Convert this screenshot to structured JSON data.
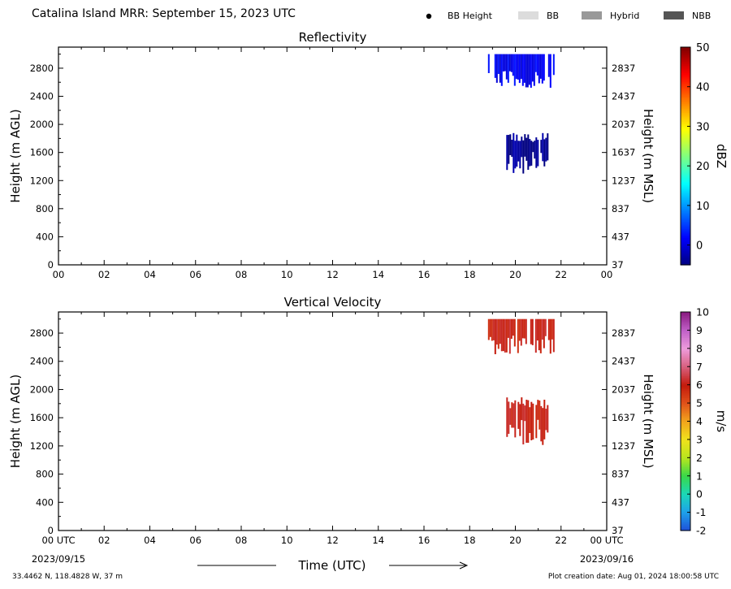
{
  "header": {
    "title": "Catalina Island MRR:  September 15, 2023 UTC",
    "legend": [
      {
        "label": "BB Height",
        "kind": "dot",
        "color": "#000000"
      },
      {
        "label": "BB",
        "kind": "box",
        "color": "#dcdcdc"
      },
      {
        "label": "Hybrid",
        "kind": "box",
        "color": "#999999"
      },
      {
        "label": "NBB",
        "kind": "box",
        "color": "#555555"
      }
    ]
  },
  "chart_data": [
    {
      "type": "heatmap",
      "title": "Reflectivity",
      "ylabel": "Height (m AGL)",
      "y2label": "Height (m MSL)",
      "xlabel": "",
      "xlim": [
        0,
        24
      ],
      "ylim": [
        0,
        3100
      ],
      "x_ticks": [
        "00",
        "02",
        "04",
        "06",
        "08",
        "10",
        "12",
        "14",
        "16",
        "18",
        "20",
        "22",
        "00"
      ],
      "y_ticks": [
        0,
        400,
        800,
        1200,
        1600,
        2000,
        2400,
        2800
      ],
      "y2_ticks": [
        37,
        437,
        837,
        1237,
        1637,
        2037,
        2437,
        2837
      ],
      "colorbar": {
        "label": "dBZ",
        "min": -5,
        "max": 50,
        "ticks": [
          0,
          10,
          20,
          30,
          40,
          50
        ]
      },
      "regions": [
        {
          "x_start": 18.8,
          "x_end": 21.7,
          "y_min": 2500,
          "y_max": 3000,
          "value": 1
        },
        {
          "x_start": 19.6,
          "x_end": 21.4,
          "y_min": 1300,
          "y_max": 1900,
          "value": -4
        }
      ]
    },
    {
      "type": "heatmap",
      "title": "Vertical Velocity",
      "ylabel": "Height (m AGL)",
      "y2label": "Height (m MSL)",
      "xlabel": "Time (UTC)",
      "xlim": [
        0,
        24
      ],
      "ylim": [
        0,
        3100
      ],
      "x_ticks": [
        "00 UTC",
        "02",
        "04",
        "06",
        "08",
        "10",
        "12",
        "14",
        "16",
        "18",
        "20",
        "22",
        "00 UTC"
      ],
      "x_dates": [
        "2023/09/15",
        "2023/09/16"
      ],
      "y_ticks": [
        0,
        400,
        800,
        1200,
        1600,
        2000,
        2400,
        2800
      ],
      "y2_ticks": [
        37,
        437,
        837,
        1237,
        1637,
        2037,
        2437,
        2837
      ],
      "colorbar": {
        "label": "m/s",
        "min": -2,
        "max": 10,
        "ticks": [
          -2,
          -1,
          0,
          1,
          2,
          3,
          4,
          5,
          6,
          7,
          8,
          9,
          10
        ]
      },
      "regions": [
        {
          "x_start": 18.8,
          "x_end": 21.7,
          "y_min": 2500,
          "y_max": 3000,
          "value": 6
        },
        {
          "x_start": 19.6,
          "x_end": 21.4,
          "y_min": 1200,
          "y_max": 1900,
          "value": 6
        }
      ]
    }
  ],
  "footer": {
    "location": "33.4462 N, 118.4828 W, 37 m",
    "creation": "Plot creation date: Aug 01, 2024 18:00:58 UTC"
  }
}
